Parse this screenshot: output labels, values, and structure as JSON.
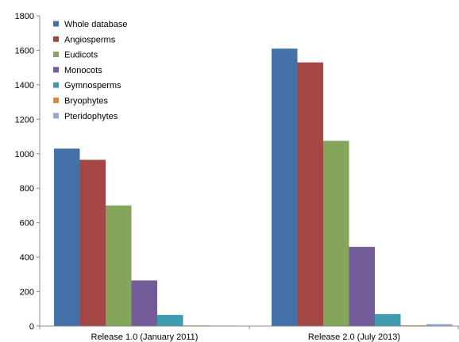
{
  "chart_data": {
    "type": "bar",
    "categories": [
      "Release 1.0 (January 2011)",
      "Release 2.0 (July 2013)"
    ],
    "series": [
      {
        "name": "Whole database",
        "color": "#4472a8",
        "values": [
          1030,
          1610
        ]
      },
      {
        "name": "Angiosperms",
        "color": "#a44744",
        "values": [
          965,
          1530
        ]
      },
      {
        "name": "Eudicots",
        "color": "#85a65a",
        "values": [
          700,
          1075
        ]
      },
      {
        "name": "Monocots",
        "color": "#725c9a",
        "values": [
          265,
          460
        ]
      },
      {
        "name": "Gymnosperms",
        "color": "#3f9bb0",
        "values": [
          65,
          70
        ]
      },
      {
        "name": "Bryophytes",
        "color": "#e0853a",
        "values": [
          4,
          5
        ]
      },
      {
        "name": "Pteridophytes",
        "color": "#93a9d3",
        "values": [
          3,
          12
        ]
      }
    ],
    "yticks": [
      0,
      200,
      400,
      600,
      800,
      1000,
      1200,
      1400,
      1600,
      1800
    ],
    "ylim": [
      0,
      1800
    ],
    "grid": false,
    "legend_position": "top-left",
    "title": "",
    "xlabel": "",
    "ylabel": ""
  }
}
